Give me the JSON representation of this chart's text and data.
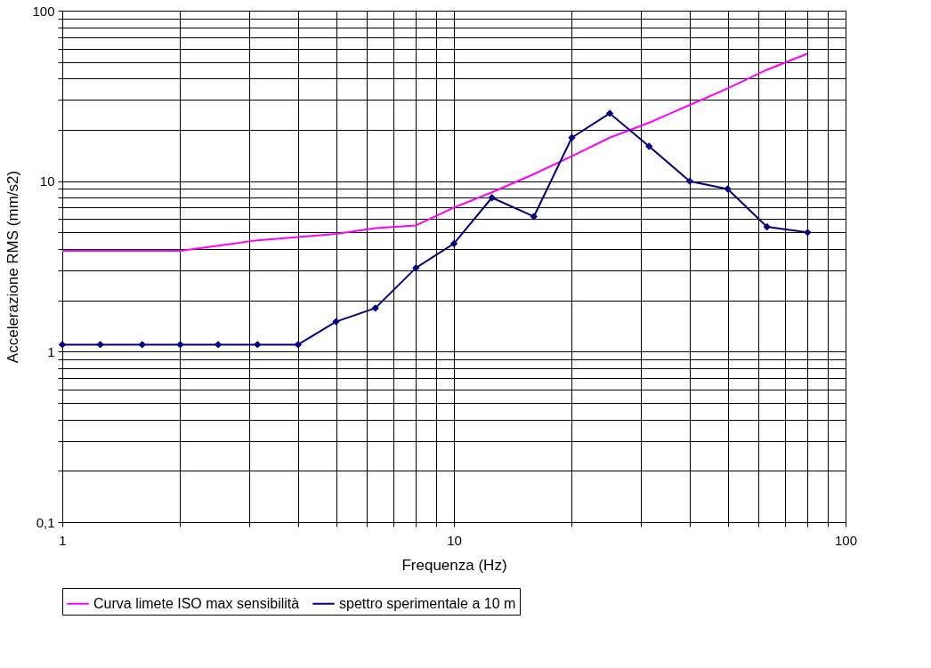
{
  "chart_data": {
    "type": "line",
    "xlabel": "Frequenza (Hz)",
    "ylabel": "Accelerazione RMS (mm/s2)",
    "log": "xy",
    "grid": true,
    "legend": "bottom",
    "line_style": "solid",
    "xlim": [
      1,
      100
    ],
    "ylim": [
      0.1,
      100
    ],
    "xticks": [
      1,
      {
        "value": 2,
        "label": null
      },
      {
        "value": 3,
        "label": null
      },
      {
        "value": 4,
        "label": null
      },
      {
        "value": 5,
        "label": null
      },
      {
        "value": 6,
        "label": null
      },
      {
        "value": 7,
        "label": null
      },
      {
        "value": 8,
        "label": null
      },
      {
        "value": 9,
        "label": null
      },
      10,
      {
        "value": 20,
        "label": null
      },
      {
        "value": 30,
        "label": null
      },
      {
        "value": 40,
        "label": null
      },
      {
        "value": 50,
        "label": null
      },
      {
        "value": 60,
        "label": null
      },
      {
        "value": 70,
        "label": null
      },
      {
        "value": 80,
        "label": null
      },
      {
        "value": 90,
        "label": null
      },
      100
    ],
    "yticks": [
      {
        "value": 0.1,
        "label": "0,1"
      },
      {
        "value": 0.2,
        "label": null
      },
      {
        "value": 0.3,
        "label": null
      },
      {
        "value": 0.4,
        "label": null
      },
      {
        "value": 0.5,
        "label": null
      },
      {
        "value": 0.6,
        "label": null
      },
      {
        "value": 0.7,
        "label": null
      },
      {
        "value": 0.8,
        "label": null
      },
      {
        "value": 0.9,
        "label": null
      },
      1,
      {
        "value": 2,
        "label": null
      },
      {
        "value": 3,
        "label": null
      },
      {
        "value": 4,
        "label": null
      },
      {
        "value": 5,
        "label": null
      },
      {
        "value": 6,
        "label": null
      },
      {
        "value": 7,
        "label": null
      },
      {
        "value": 8,
        "label": null
      },
      {
        "value": 9,
        "label": null
      },
      10,
      {
        "value": 20,
        "label": null
      },
      {
        "value": 30,
        "label": null
      },
      {
        "value": 40,
        "label": null
      },
      {
        "value": 50,
        "label": null
      },
      {
        "value": 60,
        "label": null
      },
      {
        "value": 70,
        "label": null
      },
      {
        "value": 80,
        "label": null
      },
      {
        "value": 90,
        "label": null
      },
      100
    ],
    "series": [
      {
        "name": "Curva limete ISO max sensibilità",
        "color": "#ff00ff",
        "marker": "none",
        "x": [
          1,
          2,
          3.15,
          4,
          5,
          6.3,
          8,
          10,
          12.5,
          16,
          20,
          25,
          31.5,
          40,
          50,
          63,
          80
        ],
        "values": [
          3.9,
          3.9,
          4.5,
          4.7,
          4.9,
          5.3,
          5.5,
          7.0,
          8.6,
          11,
          14,
          18,
          22,
          28,
          35,
          45,
          56
        ]
      },
      {
        "name": "spettro sperimentale a 10 m",
        "color": "#000080",
        "marker": "diamond",
        "x": [
          1,
          1.25,
          1.6,
          2,
          2.5,
          3.15,
          4,
          5,
          6.3,
          8,
          10,
          12.5,
          16,
          20,
          25,
          31.5,
          40,
          50,
          63,
          80
        ],
        "values": [
          1.1,
          1.1,
          1.1,
          1.1,
          1.1,
          1.1,
          1.1,
          1.5,
          1.8,
          3.1,
          4.3,
          8.0,
          6.2,
          18,
          25,
          16,
          10,
          9.0,
          5.4,
          5.0
        ]
      }
    ]
  }
}
